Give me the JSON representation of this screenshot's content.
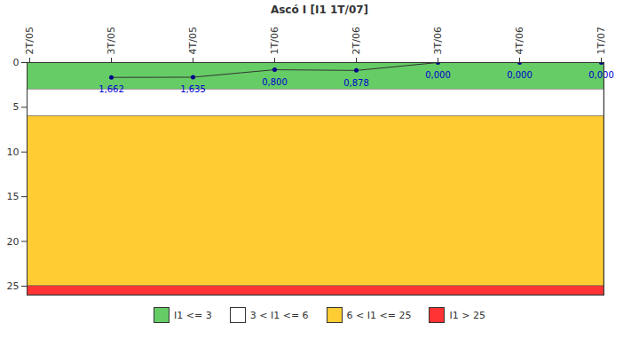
{
  "chart_data": {
    "type": "line",
    "title": "Ascó I [I1 1T/07]",
    "categories": [
      "2T/05",
      "3T/05",
      "4T/05",
      "1T/06",
      "2T/06",
      "3T/06",
      "4T/06",
      "1T/07"
    ],
    "values": [
      null,
      1.662,
      1.635,
      0.8,
      0.878,
      0,
      0,
      0
    ],
    "value_labels": [
      null,
      "1,662",
      "1,635",
      "0,800",
      "0,878",
      "0,000",
      "0,000",
      "0,000"
    ],
    "color": "#333333",
    "marker": "circle",
    "data_labels": true,
    "ylim": [
      0,
      26
    ],
    "yticks": [
      0,
      5,
      10,
      15,
      20,
      25
    ],
    "grid": false,
    "legend": "bottom",
    "bands": [
      {
        "from": 0,
        "to": 3,
        "color": "#66cc66",
        "label": "I1 <= 3"
      },
      {
        "from": 3,
        "to": 6,
        "color": "#ffffff",
        "label": "3 < I1 <= 6"
      },
      {
        "from": 6,
        "to": 25,
        "color": "#ffcc33",
        "label": "6 < I1 <= 25"
      },
      {
        "from": 25,
        "to": 26,
        "color": "#ff3333",
        "label": "I1 > 25"
      }
    ]
  }
}
